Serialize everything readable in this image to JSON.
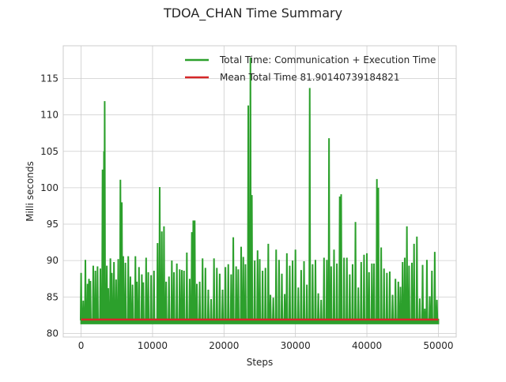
{
  "chart_data": {
    "type": "line",
    "title": "TDOA_CHAN Time Summary",
    "xlabel": "Steps",
    "ylabel": "Milli seconds",
    "xlim": [
      -2500,
      52500
    ],
    "ylim": [
      79.5,
      119.5
    ],
    "x_ticks": [
      0,
      10000,
      20000,
      30000,
      40000,
      50000
    ],
    "x_tick_labels": [
      "0",
      "10000",
      "20000",
      "30000",
      "40000",
      "50000"
    ],
    "y_ticks": [
      80,
      85,
      90,
      95,
      100,
      105,
      110,
      115
    ],
    "y_tick_labels": [
      "80",
      "85",
      "90",
      "95",
      "100",
      "105",
      "110",
      "115"
    ],
    "grid": true,
    "legend_position": "top-right",
    "series": [
      {
        "name": "Total Time: Communication + Execution Time",
        "color": "#2ca02c",
        "baseline": 81.9,
        "x_max": 50000,
        "spikes": [
          [
            0,
            88.3
          ],
          [
            300,
            84.5
          ],
          [
            600,
            90.1
          ],
          [
            900,
            86.8
          ],
          [
            1100,
            87.5
          ],
          [
            1300,
            87.2
          ],
          [
            1700,
            89.3
          ],
          [
            2000,
            88.6
          ],
          [
            2300,
            89.2
          ],
          [
            2700,
            88.9
          ],
          [
            3000,
            102.5
          ],
          [
            3200,
            105.0
          ],
          [
            3300,
            111.9
          ],
          [
            3600,
            89.3
          ],
          [
            3800,
            86.2
          ],
          [
            4100,
            90.3
          ],
          [
            4300,
            88.3
          ],
          [
            4600,
            89.8
          ],
          [
            4900,
            87.4
          ],
          [
            5200,
            90.2
          ],
          [
            5500,
            101.1
          ],
          [
            5700,
            98.0
          ],
          [
            5900,
            90.6
          ],
          [
            6200,
            89.7
          ],
          [
            6600,
            90.6
          ],
          [
            6900,
            87.8
          ],
          [
            7200,
            86.7
          ],
          [
            7600,
            90.6
          ],
          [
            7800,
            87.1
          ],
          [
            8100,
            89.1
          ],
          [
            8500,
            88.1
          ],
          [
            8700,
            87.0
          ],
          [
            9100,
            90.4
          ],
          [
            9400,
            88.4
          ],
          [
            9800,
            88.0
          ],
          [
            10200,
            88.6
          ],
          [
            10700,
            92.4
          ],
          [
            11000,
            100.1
          ],
          [
            11300,
            94.0
          ],
          [
            11600,
            94.7
          ],
          [
            11900,
            87.1
          ],
          [
            12300,
            87.8
          ],
          [
            12700,
            90.0
          ],
          [
            13000,
            88.4
          ],
          [
            13400,
            89.6
          ],
          [
            13800,
            88.8
          ],
          [
            14100,
            88.7
          ],
          [
            14400,
            88.6
          ],
          [
            14800,
            91.1
          ],
          [
            15200,
            87.5
          ],
          [
            15500,
            93.9
          ],
          [
            15700,
            95.5
          ],
          [
            15900,
            95.5
          ],
          [
            16200,
            86.8
          ],
          [
            16600,
            87.1
          ],
          [
            17000,
            90.3
          ],
          [
            17400,
            89.0
          ],
          [
            17800,
            86.0
          ],
          [
            18200,
            84.7
          ],
          [
            18600,
            90.3
          ],
          [
            19000,
            89.0
          ],
          [
            19400,
            88.2
          ],
          [
            19800,
            86.0
          ],
          [
            20200,
            89.1
          ],
          [
            20600,
            89.5
          ],
          [
            21000,
            88.1
          ],
          [
            21300,
            93.2
          ],
          [
            21700,
            89.2
          ],
          [
            22000,
            88.8
          ],
          [
            22400,
            91.9
          ],
          [
            22700,
            90.5
          ],
          [
            23000,
            89.5
          ],
          [
            23400,
            111.3
          ],
          [
            23700,
            117.9
          ],
          [
            23900,
            99.0
          ],
          [
            24300,
            90.0
          ],
          [
            24700,
            91.4
          ],
          [
            25000,
            90.2
          ],
          [
            25400,
            88.6
          ],
          [
            25800,
            89.0
          ],
          [
            26200,
            92.3
          ],
          [
            26500,
            85.3
          ],
          [
            26900,
            84.9
          ],
          [
            27300,
            91.5
          ],
          [
            27700,
            90.1
          ],
          [
            28100,
            88.2
          ],
          [
            28500,
            85.4
          ],
          [
            28800,
            91.0
          ],
          [
            29200,
            89.3
          ],
          [
            29600,
            90.0
          ],
          [
            30000,
            91.5
          ],
          [
            30400,
            86.3
          ],
          [
            30800,
            88.7
          ],
          [
            31200,
            89.9
          ],
          [
            31600,
            86.7
          ],
          [
            32000,
            113.7
          ],
          [
            32400,
            89.5
          ],
          [
            32800,
            90.1
          ],
          [
            33200,
            85.5
          ],
          [
            33600,
            84.6
          ],
          [
            34000,
            90.4
          ],
          [
            34400,
            90.1
          ],
          [
            34700,
            106.8
          ],
          [
            35000,
            89.2
          ],
          [
            35400,
            91.5
          ],
          [
            35800,
            89.6
          ],
          [
            36200,
            98.8
          ],
          [
            36400,
            99.1
          ],
          [
            36800,
            90.4
          ],
          [
            37200,
            90.4
          ],
          [
            37600,
            88.1
          ],
          [
            38000,
            89.5
          ],
          [
            38400,
            95.3
          ],
          [
            38800,
            86.3
          ],
          [
            39200,
            89.8
          ],
          [
            39600,
            90.8
          ],
          [
            40000,
            91.0
          ],
          [
            40300,
            88.4
          ],
          [
            40700,
            89.6
          ],
          [
            41000,
            89.6
          ],
          [
            41400,
            101.2
          ],
          [
            41600,
            100.0
          ],
          [
            42000,
            91.8
          ],
          [
            42400,
            88.9
          ],
          [
            42800,
            88.3
          ],
          [
            43200,
            88.5
          ],
          [
            43600,
            85.3
          ],
          [
            44000,
            87.5
          ],
          [
            44400,
            87.1
          ],
          [
            44700,
            86.4
          ],
          [
            45000,
            89.8
          ],
          [
            45300,
            90.4
          ],
          [
            45600,
            94.7
          ],
          [
            45900,
            89.3
          ],
          [
            46300,
            89.7
          ],
          [
            46600,
            92.3
          ],
          [
            47000,
            93.3
          ],
          [
            47400,
            84.8
          ],
          [
            47800,
            89.4
          ],
          [
            48100,
            83.4
          ],
          [
            48400,
            90.1
          ],
          [
            48800,
            85.1
          ],
          [
            49100,
            88.6
          ],
          [
            49500,
            91.2
          ],
          [
            49800,
            84.6
          ]
        ]
      },
      {
        "name": "Mean Total Time 81.90140739184821",
        "color": "#d62728",
        "value": 81.90140739184821,
        "x_range": [
          0,
          50000
        ]
      }
    ]
  }
}
